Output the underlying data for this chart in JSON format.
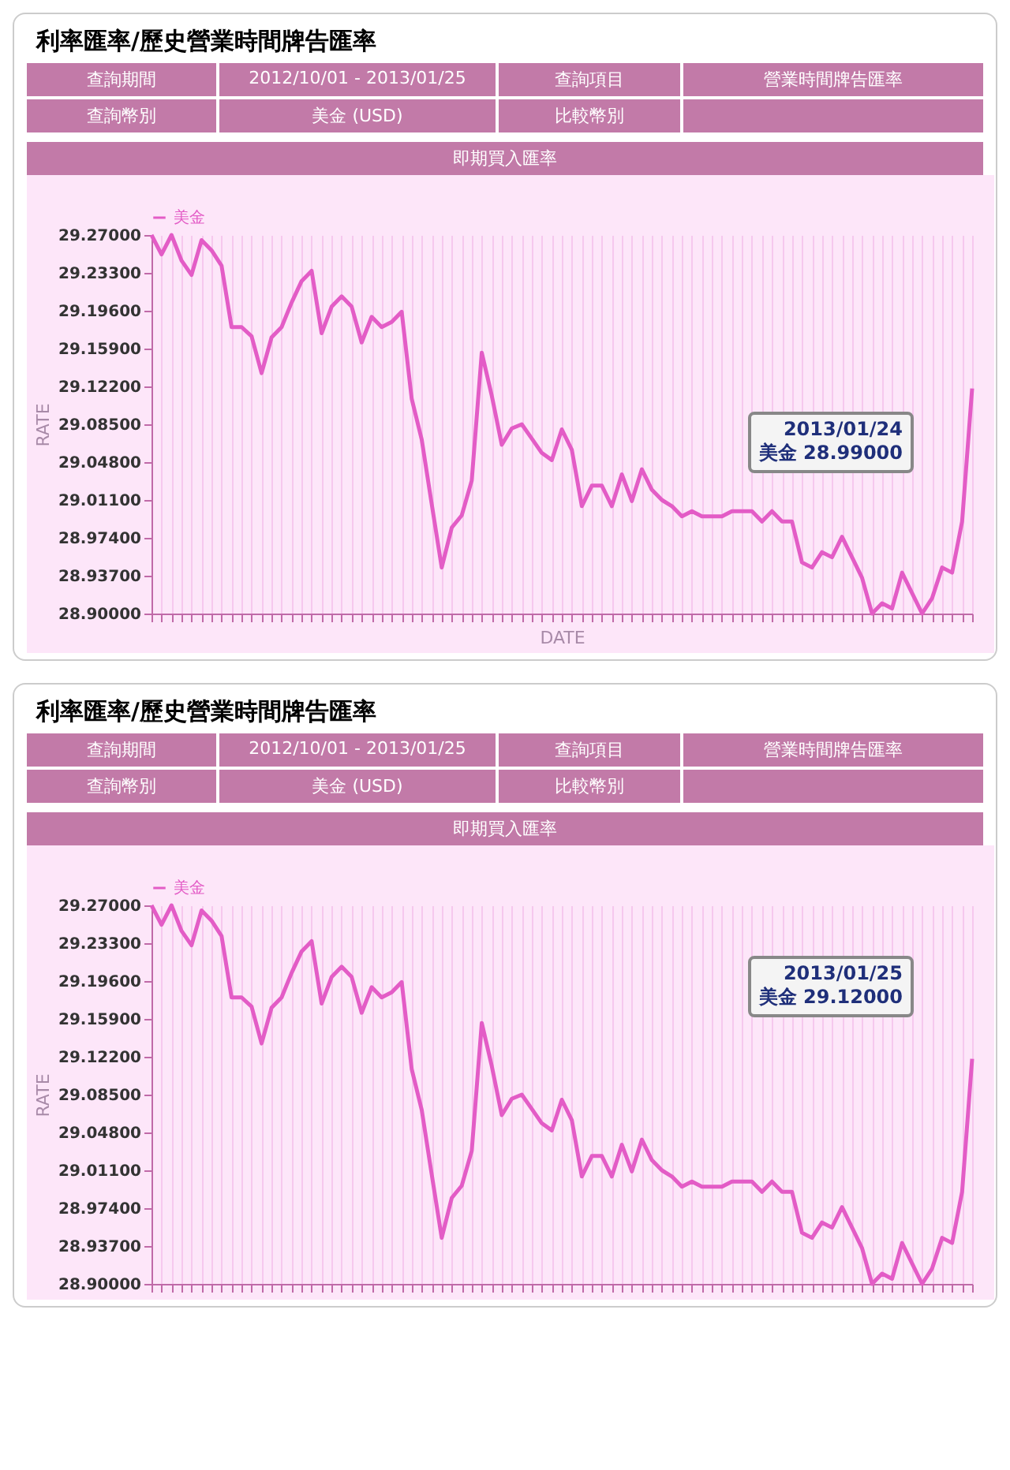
{
  "chart_data": [
    {
      "type": "line",
      "title": "利率匯率/歷史營業時間牌告匯率",
      "subtitle": "即期買入匯率",
      "xlabel": "DATE",
      "ylabel": "RATE",
      "legend": "top left",
      "grid": "x",
      "categories": [
        null,
        null,
        null,
        null,
        null,
        null,
        null,
        null,
        null,
        null,
        null,
        null,
        null,
        null,
        null,
        null,
        null,
        null,
        null,
        null,
        null,
        null,
        null,
        null,
        null,
        null,
        null,
        null,
        null,
        null,
        null,
        null,
        null,
        null,
        null,
        null,
        null,
        null,
        null,
        null,
        null,
        null,
        null,
        null,
        null,
        null,
        null,
        null,
        null,
        null,
        null,
        null,
        null,
        null,
        null,
        null,
        null,
        null,
        null,
        null,
        null,
        null,
        null,
        null,
        null,
        null,
        null,
        null,
        null,
        null,
        null,
        null,
        null,
        null,
        null,
        null,
        null,
        null,
        null,
        null,
        null,
        null,
        null
      ],
      "ylim": [
        28.9,
        29.27
      ],
      "yticks": [
        {
          "value": 28.9,
          "label": "28.90000"
        },
        {
          "value": 28.937,
          "label": "28.93700"
        },
        {
          "value": 28.974,
          "label": "28.97400"
        },
        {
          "value": 29.011,
          "label": "29.01100"
        },
        {
          "value": 29.048,
          "label": "29.04800"
        },
        {
          "value": 29.085,
          "label": "29.08500"
        },
        {
          "value": 29.122,
          "label": "29.12200"
        },
        {
          "value": 29.159,
          "label": "29.15900"
        },
        {
          "value": 29.196,
          "label": "29.19600"
        },
        {
          "value": 29.233,
          "label": "29.23300"
        },
        {
          "value": 29.27,
          "label": "29.27000"
        }
      ],
      "series": [
        {
          "name": "美金",
          "color": "#e35cc6",
          "values": [
            29.27,
            29.251,
            29.27,
            29.245,
            29.231,
            29.265,
            29.255,
            29.24,
            29.18,
            29.18,
            29.171,
            29.135,
            29.17,
            29.18,
            29.204,
            29.225,
            29.235,
            29.174,
            29.2,
            29.21,
            29.2,
            29.165,
            29.19,
            29.18,
            29.185,
            29.195,
            29.11,
            29.07,
            29.007,
            28.945,
            28.984,
            28.996,
            29.03,
            29.155,
            29.113,
            29.065,
            29.081,
            29.085,
            29.071,
            29.057,
            29.05,
            29.08,
            29.06,
            29.005,
            29.025,
            29.025,
            29.005,
            29.036,
            29.01,
            29.041,
            29.021,
            29.011,
            29.005,
            28.995,
            29.0,
            28.995,
            28.995,
            28.995,
            29.0,
            29.0,
            29.0,
            28.99,
            29.0,
            28.99,
            28.99,
            28.95,
            28.945,
            28.96,
            28.955,
            28.975,
            28.955,
            28.935,
            28.9,
            28.91,
            28.905,
            28.94,
            28.92,
            28.9,
            28.915,
            28.945,
            28.94,
            28.99,
            29.12
          ]
        }
      ],
      "annotations": [
        "查詢期間",
        "2012/10/01 - 2013/01/25",
        "查詢項目",
        "營業時間牌告匯率",
        "查詢幣別",
        "美金 (USD)",
        "比較幣別",
        "2013/01/24\n美金 28.99000"
      ]
    },
    {
      "type": "line",
      "title": "利率匯率/歷史營業時間牌告匯率",
      "subtitle": "即期買入匯率",
      "ylabel": "RATE",
      "legend": "top left",
      "grid": "x",
      "categories": [
        null,
        null,
        null,
        null,
        null,
        null,
        null,
        null,
        null,
        null,
        null,
        null,
        null,
        null,
        null,
        null,
        null,
        null,
        null,
        null,
        null,
        null,
        null,
        null,
        null,
        null,
        null,
        null,
        null,
        null,
        null,
        null,
        null,
        null,
        null,
        null,
        null,
        null,
        null,
        null,
        null,
        null,
        null,
        null,
        null,
        null,
        null,
        null,
        null,
        null,
        null,
        null,
        null,
        null,
        null,
        null,
        null,
        null,
        null,
        null,
        null,
        null,
        null,
        null,
        null,
        null,
        null,
        null,
        null,
        null,
        null,
        null,
        null,
        null,
        null,
        null,
        null,
        null,
        null,
        null,
        null,
        null,
        null
      ],
      "ylim": [
        28.9,
        29.27
      ],
      "yticks": [
        {
          "value": 28.9,
          "label": "28.90000"
        },
        {
          "value": 28.937,
          "label": "28.93700"
        },
        {
          "value": 28.974,
          "label": "28.97400"
        },
        {
          "value": 29.011,
          "label": "29.01100"
        },
        {
          "value": 29.048,
          "label": "29.04800"
        },
        {
          "value": 29.085,
          "label": "29.08500"
        },
        {
          "value": 29.122,
          "label": "29.12200"
        },
        {
          "value": 29.159,
          "label": "29.15900"
        },
        {
          "value": 29.196,
          "label": "29.19600"
        },
        {
          "value": 29.233,
          "label": "29.23300"
        },
        {
          "value": 29.27,
          "label": "29.27000"
        }
      ],
      "series": [
        {
          "name": "美金",
          "color": "#e35cc6",
          "values": [
            29.27,
            29.251,
            29.27,
            29.245,
            29.231,
            29.265,
            29.255,
            29.24,
            29.18,
            29.18,
            29.171,
            29.135,
            29.17,
            29.18,
            29.204,
            29.225,
            29.235,
            29.174,
            29.2,
            29.21,
            29.2,
            29.165,
            29.19,
            29.18,
            29.185,
            29.195,
            29.11,
            29.07,
            29.007,
            28.945,
            28.984,
            28.996,
            29.03,
            29.155,
            29.113,
            29.065,
            29.081,
            29.085,
            29.071,
            29.057,
            29.05,
            29.08,
            29.06,
            29.005,
            29.025,
            29.025,
            29.005,
            29.036,
            29.01,
            29.041,
            29.021,
            29.011,
            29.005,
            28.995,
            29.0,
            28.995,
            28.995,
            28.995,
            29.0,
            29.0,
            29.0,
            28.99,
            29.0,
            28.99,
            28.99,
            28.95,
            28.945,
            28.96,
            28.955,
            28.975,
            28.955,
            28.935,
            28.9,
            28.91,
            28.905,
            28.94,
            28.92,
            28.9,
            28.915,
            28.945,
            28.94,
            28.99,
            29.12
          ]
        }
      ],
      "annotations": [
        "查詢期間",
        "2012/10/01 - 2013/01/25",
        "查詢項目",
        "營業時間牌告匯率",
        "查詢幣別",
        "美金 (USD)",
        "比較幣別",
        "2013/01/25\n美金 29.12000"
      ]
    }
  ]
}
